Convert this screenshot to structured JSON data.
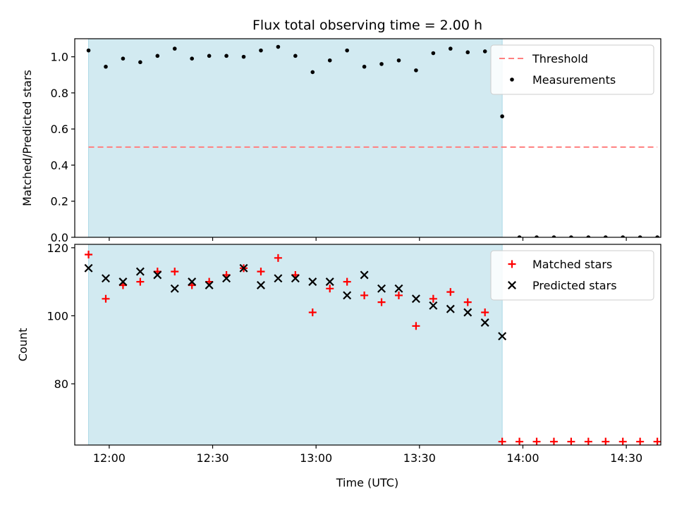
{
  "chart_data": {
    "title": "Flux total observing time = 2.00 h",
    "xlabel": "Time (UTC)",
    "x_tick_labels": [
      "12:00",
      "12:30",
      "13:00",
      "13:30",
      "14:00",
      "14:30"
    ],
    "x_ticks": [
      "12:00",
      "12:30",
      "13:00",
      "13:30",
      "14:00",
      "14:30"
    ],
    "xlim": [
      "11:50",
      "14:40"
    ],
    "shaded_interval": [
      "11:54",
      "13:54"
    ],
    "shade_color": "#add8e6",
    "times": [
      "11:54",
      "11:59",
      "12:04",
      "12:09",
      "12:14",
      "12:19",
      "12:24",
      "12:29",
      "12:34",
      "12:39",
      "12:44",
      "12:49",
      "12:54",
      "12:59",
      "13:04",
      "13:09",
      "13:14",
      "13:19",
      "13:24",
      "13:29",
      "13:34",
      "13:39",
      "13:44",
      "13:49",
      "13:54",
      "13:59",
      "14:04",
      "14:09",
      "14:14",
      "14:19",
      "14:24",
      "14:29",
      "14:34",
      "14:39"
    ],
    "panels": [
      {
        "type": "scatter",
        "ylabel": "Matched/Predicted stars",
        "ylim": [
          0,
          1.1
        ],
        "y_ticks": [
          0.0,
          0.2,
          0.4,
          0.6,
          0.8,
          1.0
        ],
        "y_tick_labels": [
          "0.0",
          "0.2",
          "0.4",
          "0.6",
          "0.8",
          "1.0"
        ],
        "legend_position": "upper right",
        "threshold": {
          "name": "Threshold",
          "value": 0.5,
          "x_range": [
            "11:54",
            "14:39"
          ],
          "color": "#ff7f7f",
          "style": "dashed"
        },
        "series": [
          {
            "name": "Measurements",
            "marker": "dot",
            "color": "#000000",
            "times": [
              "11:54",
              "11:59",
              "12:04",
              "12:09",
              "12:14",
              "12:19",
              "12:24",
              "12:29",
              "12:34",
              "12:39",
              "12:44",
              "12:49",
              "12:54",
              "12:59",
              "13:04",
              "13:09",
              "13:14",
              "13:19",
              "13:24",
              "13:29",
              "13:34",
              "13:39",
              "13:44",
              "13:49",
              "13:54",
              "13:59",
              "14:04",
              "14:09",
              "14:14",
              "14:19",
              "14:24",
              "14:29",
              "14:34",
              "14:39"
            ],
            "values": [
              1.035,
              0.945,
              0.99,
              0.97,
              1.005,
              1.045,
              0.99,
              1.005,
              1.005,
              1.0,
              1.035,
              1.055,
              1.005,
              0.915,
              0.98,
              1.035,
              0.945,
              0.96,
              0.98,
              0.925,
              1.02,
              1.045,
              1.025,
              1.03,
              0.67,
              0,
              0,
              0,
              0,
              0,
              0,
              0,
              0,
              0
            ]
          }
        ]
      },
      {
        "type": "scatter",
        "ylabel": "Count",
        "ylim": [
          62,
          121
        ],
        "y_ticks": [
          80,
          100,
          120
        ],
        "y_tick_labels": [
          "80",
          "100",
          "120"
        ],
        "legend_position": "upper right",
        "series": [
          {
            "name": "Matched stars",
            "marker": "plus",
            "color": "#ff0000",
            "times": [
              "11:54",
              "11:59",
              "12:04",
              "12:09",
              "12:14",
              "12:19",
              "12:24",
              "12:29",
              "12:34",
              "12:39",
              "12:44",
              "12:49",
              "12:54",
              "12:59",
              "13:04",
              "13:09",
              "13:14",
              "13:19",
              "13:24",
              "13:29",
              "13:34",
              "13:39",
              "13:44",
              "13:49",
              "13:54",
              "13:59",
              "14:04",
              "14:09",
              "14:14",
              "14:19",
              "14:24",
              "14:29",
              "14:34",
              "14:39"
            ],
            "values": [
              118,
              105,
              109,
              110,
              113,
              113,
              109,
              110,
              112,
              114,
              113,
              117,
              112,
              101,
              108,
              110,
              106,
              104,
              106,
              97,
              105,
              107,
              104,
              101,
              63,
              63,
              63,
              63,
              63,
              63,
              63,
              63,
              63,
              63
            ]
          },
          {
            "name": "Predicted stars",
            "marker": "x",
            "color": "#000000",
            "times": [
              "11:54",
              "11:59",
              "12:04",
              "12:09",
              "12:14",
              "12:19",
              "12:24",
              "12:29",
              "12:34",
              "12:39",
              "12:44",
              "12:49",
              "12:54",
              "12:59",
              "13:04",
              "13:09",
              "13:14",
              "13:19",
              "13:24",
              "13:29",
              "13:34",
              "13:39",
              "13:44",
              "13:49",
              "13:54"
            ],
            "values": [
              114,
              111,
              110,
              113,
              112,
              108,
              110,
              109,
              111,
              114,
              109,
              111,
              111,
              110,
              110,
              106,
              112,
              108,
              108,
              105,
              103,
              102,
              101,
              98,
              94
            ]
          }
        ]
      }
    ]
  }
}
